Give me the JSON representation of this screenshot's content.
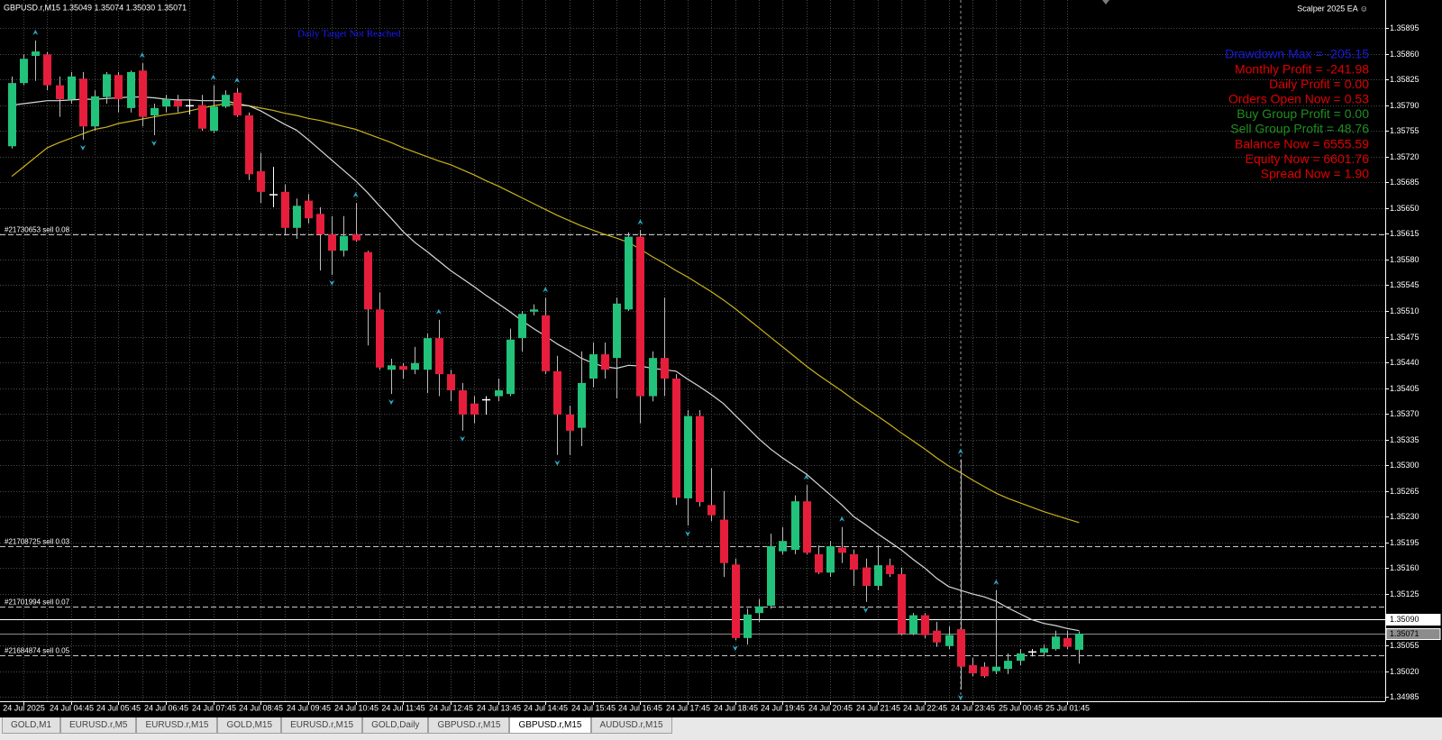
{
  "header": {
    "symbol_info": "GBPUSD.r,M15  1.35049 1.35074 1.35030 1.35071",
    "ea_name": "Scalper 2025 EA ☺"
  },
  "status_text": {
    "text": "Daily Target Not Reached",
    "color": "#1b1bff"
  },
  "info_panel": [
    {
      "text": "Drawdown Max = -205.15",
      "color": "#1a1ad8"
    },
    {
      "text": "Monthly Profit = -241.98",
      "color": "#e00000"
    },
    {
      "text": "Daily Profit = 0.00",
      "color": "#e00000"
    },
    {
      "text": "Orders Open Now = 0.53",
      "color": "#e00000"
    },
    {
      "text": "Buy Group Profit = 0.00",
      "color": "#1f8f1f"
    },
    {
      "text": "Sell Group Profit = 48.76",
      "color": "#1f8f1f"
    },
    {
      "text": "Balance Now = 6555.59",
      "color": "#e00000"
    },
    {
      "text": "Equity Now = 6601.76",
      "color": "#e00000"
    },
    {
      "text": "Spread Now = 1.90",
      "color": "#e00000"
    }
  ],
  "chart": {
    "type": "candlestick",
    "bull_color": "#22c27a",
    "bear_color": "#e61e3c",
    "fractal_color": "#2aa8c4",
    "grid": true,
    "ylim": [
      1.34979,
      1.35933
    ],
    "yticks": [
      1.35895,
      {
        "value": 1.3586,
        "label": "1.35860"
      },
      1.35825,
      {
        "value": 1.3579,
        "label": "1.35790"
      },
      1.35755,
      {
        "value": 1.3572,
        "label": "1.35720"
      },
      1.35685,
      {
        "value": 1.3565,
        "label": "1.35650"
      },
      1.35615,
      {
        "value": 1.3558,
        "label": "1.35580"
      },
      1.35545,
      {
        "value": 1.3551,
        "label": "1.35510"
      },
      1.35475,
      {
        "value": 1.3544,
        "label": "1.35440"
      },
      1.35405,
      {
        "value": 1.3537,
        "label": "1.35370"
      },
      1.35335,
      {
        "value": 1.353,
        "label": "1.35300"
      },
      1.35265,
      {
        "value": 1.3523,
        "label": "1.35230"
      },
      1.35195,
      {
        "value": 1.3516,
        "label": "1.35160"
      },
      1.35125,
      {
        "value": 1.3509,
        "label": "1.35090"
      },
      1.35055,
      {
        "value": 1.3502,
        "label": "1.35020"
      },
      1.34985
    ],
    "categories": [
      null,
      "24 Jul 2025",
      null,
      null,
      null,
      "24 Jul 04:45",
      null,
      null,
      null,
      "24 Jul 05:45",
      null,
      null,
      null,
      "24 Jul 06:45",
      null,
      null,
      null,
      "24 Jul 07:45",
      null,
      null,
      null,
      "24 Jul 08:45",
      null,
      null,
      null,
      "24 Jul 09:45",
      null,
      null,
      null,
      "24 Jul 10:45",
      null,
      null,
      null,
      "24 Jul 11:45",
      null,
      null,
      null,
      "24 Jul 12:45",
      null,
      null,
      null,
      "24 Jul 13:45",
      null,
      null,
      null,
      "24 Jul 14:45",
      null,
      null,
      null,
      "24 Jul 15:45",
      null,
      null,
      null,
      "24 Jul 16:45",
      null,
      null,
      null,
      "24 Jul 17:45",
      null,
      null,
      null,
      "24 Jul 18:45",
      null,
      null,
      null,
      "24 Jul 19:45",
      null,
      null,
      null,
      "24 Jul 20:45",
      null,
      null,
      null,
      "24 Jul 21:45",
      null,
      null,
      null,
      "24 Jul 22:45",
      null,
      null,
      null,
      "24 Jul 23:45",
      null,
      null,
      null,
      "25 Jul 00:45",
      null,
      null,
      null,
      "25 Jul 01:45",
      null
    ],
    "candles": [
      [
        1.35734,
        1.35829,
        1.35731,
        1.3582
      ],
      [
        1.3582,
        1.35859,
        1.35817,
        1.35853
      ],
      [
        1.35857,
        1.35878,
        1.35823,
        1.35863
      ],
      [
        1.35859,
        1.35862,
        1.3581,
        1.35817
      ],
      [
        1.35817,
        1.35829,
        1.35774,
        1.35798
      ],
      [
        1.35798,
        1.35835,
        1.35792,
        1.35829
      ],
      [
        1.35826,
        1.35835,
        1.35743,
        1.35761
      ],
      [
        1.35761,
        1.3581,
        1.35755,
        1.35802
      ],
      [
        1.35801,
        1.35835,
        1.35792,
        1.35832
      ],
      [
        1.35831,
        1.35835,
        1.3578,
        1.35798
      ],
      [
        1.35786,
        1.35837,
        1.3578,
        1.35835
      ],
      [
        1.35837,
        1.35847,
        1.35761,
        1.35774
      ],
      [
        1.35776,
        1.35792,
        1.35749,
        1.35786
      ],
      [
        1.35788,
        1.35804,
        1.3578,
        1.35798
      ],
      [
        1.35796,
        1.35804,
        1.3578,
        1.35788
      ],
      [
        1.3579,
        1.35798,
        1.35777,
        1.3579
      ],
      [
        1.3579,
        1.35804,
        1.35755,
        1.35758
      ],
      [
        1.35755,
        1.35817,
        1.35752,
        1.35788
      ],
      [
        1.35788,
        1.3581,
        1.35786,
        1.35804
      ],
      [
        1.35807,
        1.35813,
        1.35774,
        1.35776
      ],
      [
        1.35776,
        1.3578,
        1.35688,
        1.35696
      ],
      [
        1.357,
        1.35725,
        1.35657,
        1.35672
      ],
      [
        1.35669,
        1.35706,
        1.35651,
        1.35669
      ],
      [
        1.35672,
        1.35682,
        1.35614,
        1.35623
      ],
      [
        1.35623,
        1.35663,
        1.35608,
        1.35653
      ],
      [
        1.3566,
        1.35669,
        1.35629,
        1.35636
      ],
      [
        1.35642,
        1.35651,
        1.35565,
        1.35614
      ],
      [
        1.35614,
        1.35639,
        1.35559,
        1.35592
      ],
      [
        1.35592,
        1.35639,
        1.35584,
        1.35612
      ],
      [
        1.35614,
        1.35657,
        1.35604,
        1.35606
      ],
      [
        1.3559,
        1.35592,
        1.35463,
        1.35512
      ],
      [
        1.35512,
        1.35535,
        1.3543,
        1.35433
      ],
      [
        1.3543,
        1.35445,
        1.35397,
        1.35436
      ],
      [
        1.35435,
        1.35439,
        1.35418,
        1.3543
      ],
      [
        1.3543,
        1.35461,
        1.35424,
        1.35439
      ],
      [
        1.3543,
        1.35479,
        1.35398,
        1.35473
      ],
      [
        1.35473,
        1.35498,
        1.35394,
        1.35424
      ],
      [
        1.35424,
        1.3543,
        1.35387,
        1.35402
      ],
      [
        1.35402,
        1.35412,
        1.35347,
        1.35369
      ],
      [
        1.35384,
        1.35394,
        1.35357,
        1.35369
      ],
      [
        1.3539,
        1.35394,
        1.35369,
        1.3539
      ],
      [
        1.35394,
        1.35418,
        1.35387,
        1.35402
      ],
      [
        1.35397,
        1.35486,
        1.35394,
        1.35471
      ],
      [
        1.35473,
        1.3551,
        1.35455,
        1.35506
      ],
      [
        1.35509,
        1.35519,
        1.35504,
        1.35512
      ],
      [
        1.35504,
        1.35528,
        1.35424,
        1.35428
      ],
      [
        1.35428,
        1.35449,
        1.35314,
        1.35369
      ],
      [
        1.35369,
        1.35381,
        1.35314,
        1.35347
      ],
      [
        1.35351,
        1.35455,
        1.35326,
        1.35412
      ],
      [
        1.35418,
        1.35467,
        1.35406,
        1.35451
      ],
      [
        1.35451,
        1.35467,
        1.35418,
        1.3543
      ],
      [
        1.35446,
        1.35528,
        1.35391,
        1.3552
      ],
      [
        1.35512,
        1.35617,
        1.3551,
        1.35611
      ],
      [
        1.35611,
        1.3562,
        1.35357,
        1.35394
      ],
      [
        1.35394,
        1.35455,
        1.35387,
        1.35446
      ],
      [
        1.35446,
        1.35528,
        1.35394,
        1.35418
      ],
      [
        1.35418,
        1.35424,
        1.35246,
        1.35256
      ],
      [
        1.35255,
        1.35375,
        1.35218,
        1.35367
      ],
      [
        1.35367,
        1.35375,
        1.35244,
        1.3525
      ],
      [
        1.35246,
        1.35296,
        1.35224,
        1.35232
      ],
      [
        1.35226,
        1.35265,
        1.35148,
        1.35167
      ],
      [
        1.35165,
        1.35173,
        1.35062,
        1.35065
      ],
      [
        1.35065,
        1.35105,
        1.35056,
        1.35097
      ],
      [
        1.35099,
        1.35118,
        1.35087,
        1.35108
      ],
      [
        1.35109,
        1.35207,
        1.35105,
        1.3519
      ],
      [
        1.35183,
        1.35216,
        1.35179,
        1.35197
      ],
      [
        1.35185,
        1.35259,
        1.35179,
        1.35251
      ],
      [
        1.35251,
        1.35273,
        1.35179,
        1.35181
      ],
      [
        1.35179,
        1.35191,
        1.35152,
        1.35154
      ],
      [
        1.35154,
        1.35197,
        1.35148,
        1.3519
      ],
      [
        1.35188,
        1.35216,
        1.35167,
        1.35181
      ],
      [
        1.35179,
        1.35185,
        1.35136,
        1.35158
      ],
      [
        1.35161,
        1.35173,
        1.35114,
        1.35136
      ],
      [
        1.35136,
        1.35191,
        1.3513,
        1.35164
      ],
      [
        1.35164,
        1.35173,
        1.35148,
        1.35152
      ],
      [
        1.35152,
        1.35161,
        1.35069,
        1.35071
      ],
      [
        1.35071,
        1.35099,
        1.35069,
        1.35096
      ],
      [
        1.35096,
        1.35099,
        1.35065,
        1.35069
      ],
      [
        1.35075,
        1.35087,
        1.35053,
        1.35059
      ],
      [
        1.35054,
        1.35081,
        1.3505,
        1.35069
      ],
      [
        1.35077,
        1.35308,
        1.34995,
        1.35026
      ],
      [
        1.35028,
        1.35038,
        1.35013,
        1.35017
      ],
      [
        1.35026,
        1.35032,
        1.35011,
        1.35013
      ],
      [
        1.3502,
        1.3513,
        1.35016,
        1.35026
      ],
      [
        1.35023,
        1.35044,
        1.35016,
        1.35034
      ],
      [
        1.35034,
        1.3505,
        1.35028,
        1.35044
      ],
      [
        1.35047,
        1.3505,
        1.3504,
        1.35047
      ],
      [
        1.35045,
        1.35056,
        1.3504,
        1.35051
      ],
      [
        1.3505,
        1.35075,
        1.35048,
        1.35067
      ],
      [
        1.35065,
        1.35075,
        1.3505,
        1.35053
      ],
      [
        1.35049,
        1.35074,
        1.3503,
        1.35071
      ]
    ],
    "ma_lines": [
      {
        "color": "#c9b31c",
        "values": [
          1.35693,
          1.35706,
          1.35719,
          1.35732,
          1.35739,
          1.35745,
          1.35751,
          1.35757,
          1.3576,
          1.35765,
          1.35768,
          1.35771,
          1.35774,
          1.35777,
          1.35779,
          1.35782,
          1.35786,
          1.35789,
          1.35792,
          1.3579,
          1.35789,
          1.35786,
          1.35783,
          1.35779,
          1.35776,
          1.35772,
          1.35769,
          1.35765,
          1.35761,
          1.35757,
          1.35751,
          1.35745,
          1.35739,
          1.35732,
          1.35726,
          1.3572,
          1.35714,
          1.35709,
          1.35702,
          1.35695,
          1.35687,
          1.3568,
          1.35672,
          1.35664,
          1.35656,
          1.35648,
          1.3564,
          1.35633,
          1.35626,
          1.3562,
          1.35614,
          1.35609,
          1.35603,
          1.35594,
          1.35584,
          1.35575,
          1.35565,
          1.35556,
          1.35546,
          1.35536,
          1.35525,
          1.35513,
          1.355,
          1.35487,
          1.35474,
          1.35461,
          1.35448,
          1.35435,
          1.35423,
          1.35412,
          1.35401,
          1.35389,
          1.35378,
          1.35367,
          1.35356,
          1.35344,
          1.35333,
          1.35322,
          1.3531,
          1.35299,
          1.3529,
          1.3528,
          1.35271,
          1.35262,
          1.35255,
          1.35249,
          1.35243,
          1.35237,
          1.35232,
          1.35227,
          1.35222
        ]
      },
      {
        "color": "#d8d8d8",
        "values": [
          1.3579,
          1.35792,
          1.35794,
          1.35796,
          1.35796,
          1.35797,
          1.35798,
          1.35798,
          1.35799,
          1.358,
          1.35801,
          1.35801,
          1.358,
          1.35798,
          1.35797,
          1.35797,
          1.35796,
          1.35796,
          1.35796,
          1.35792,
          1.35789,
          1.35782,
          1.35773,
          1.35764,
          1.35756,
          1.35743,
          1.35729,
          1.35715,
          1.35701,
          1.35687,
          1.35671,
          1.35653,
          1.35636,
          1.35618,
          1.35603,
          1.35591,
          1.35578,
          1.35565,
          1.35554,
          1.35543,
          1.35531,
          1.3552,
          1.35509,
          1.35497,
          1.35486,
          1.35476,
          1.35465,
          1.35456,
          1.35446,
          1.35439,
          1.35434,
          1.35432,
          1.35436,
          1.35435,
          1.35432,
          1.3543,
          1.35428,
          1.35417,
          1.35407,
          1.35396,
          1.35384,
          1.35368,
          1.35352,
          1.35336,
          1.35322,
          1.3531,
          1.35299,
          1.35288,
          1.35274,
          1.3526,
          1.35246,
          1.3523,
          1.35219,
          1.35207,
          1.35196,
          1.35185,
          1.35172,
          1.3516,
          1.35146,
          1.35135,
          1.3513,
          1.35125,
          1.35121,
          1.35115,
          1.35106,
          1.35098,
          1.3509,
          1.35085,
          1.35082,
          1.35078,
          1.35075
        ]
      }
    ],
    "fractals_up": [
      2,
      11,
      17,
      19,
      29,
      36,
      45,
      53,
      67,
      70,
      80,
      83
    ],
    "fractals_down": [
      6,
      12,
      27,
      32,
      38,
      46,
      57,
      61,
      72,
      80
    ],
    "price_lines": [
      {
        "value": 1.3509,
        "label": "1.35090",
        "color": "#ffffff"
      },
      {
        "value": 1.35071,
        "label": "1.35071",
        "color": "#8c8c8c"
      }
    ],
    "order_lines": [
      {
        "label": "#21730653 sell 0.08",
        "value": 1.35614
      },
      {
        "label": "#21708725 sell 0.03",
        "value": 1.3519
      },
      {
        "label": "#21701994 sell 0.07",
        "value": 1.35108
      },
      {
        "label": "#21684874 sell 0.05",
        "value": 1.35041
      }
    ]
  },
  "tabs": [
    "GOLD,M1",
    "EURUSD.r,M5",
    "EURUSD.r,M15",
    "GOLD,M15",
    "EURUSD.r,M15",
    "GOLD,Daily",
    "GBPUSD.r,M15",
    "GBPUSD.r,M15",
    "AUDUSD.r,M15"
  ],
  "active_tab": 7
}
